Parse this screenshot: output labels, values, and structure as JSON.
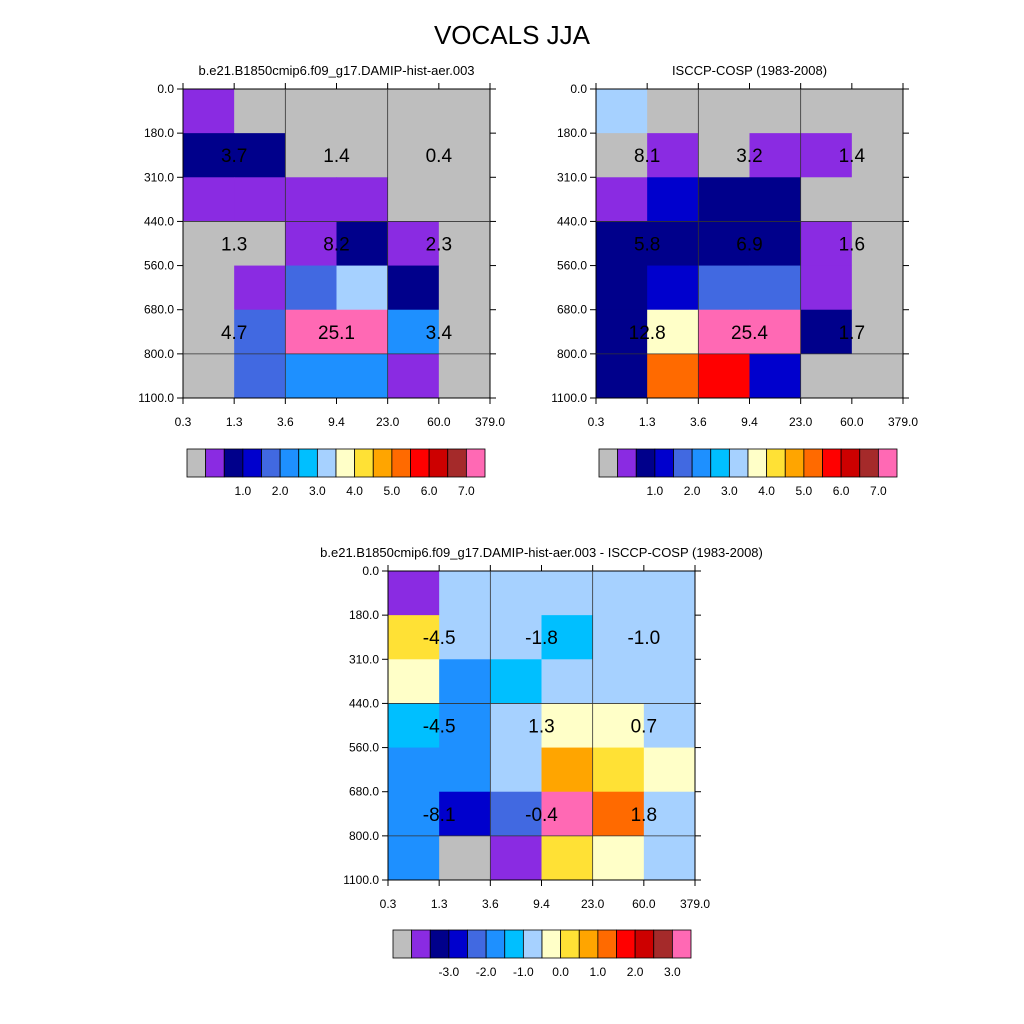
{
  "figure": {
    "title": "VOCALS JJA"
  },
  "colors": {
    "model_palette": [
      "#bebebe",
      "#8a2be2",
      "#00008b",
      "#0000cd",
      "#4169e1",
      "#1e90ff",
      "#00bfff",
      "#a6d1ff",
      "#ffffc8",
      "#ffe135",
      "#ffa500",
      "#ff6a00",
      "#ff0000",
      "#cd0000",
      "#a52a2a",
      "#ff69b4"
    ],
    "diff_palette": [
      "#bebebe",
      "#8a2be2",
      "#00008b",
      "#0000cd",
      "#4169e1",
      "#1e90ff",
      "#00bfff",
      "#a6d1ff",
      "#ffffc8",
      "#ffe135",
      "#ffa500",
      "#ff6a00",
      "#ff0000",
      "#cd0000",
      "#a52a2a",
      "#ff69b4"
    ]
  },
  "chart_data": [
    {
      "type": "heatmap",
      "title": "b.e21.B1850cmip6.f09_g17.DAMIP-hist-aer.003",
      "x_tick_labels": [
        "0.3",
        "1.3",
        "3.6",
        "9.4",
        "23.0",
        "60.0",
        "379.0"
      ],
      "y_tick_labels": [
        "0.0",
        "180.0",
        "310.0",
        "440.0",
        "560.0",
        "680.0",
        "800.0",
        "1100.0"
      ],
      "colorbar_labels": [
        "1.0",
        "2.0",
        "3.0",
        "4.0",
        "5.0",
        "6.0",
        "7.0"
      ],
      "cells": [
        [
          1,
          0,
          0,
          0,
          0,
          0
        ],
        [
          2,
          2,
          0,
          0,
          0,
          0
        ],
        [
          1,
          1,
          1,
          1,
          0,
          0
        ],
        [
          0,
          0,
          1,
          2,
          1,
          0
        ],
        [
          0,
          1,
          4,
          7,
          2,
          0
        ],
        [
          0,
          4,
          15,
          15,
          5,
          0
        ],
        [
          0,
          4,
          5,
          5,
          1,
          0
        ]
      ],
      "annotations": [
        {
          "row": 1,
          "col": 0,
          "text": "3.7"
        },
        {
          "row": 1,
          "col": 1,
          "text": "1.4"
        },
        {
          "row": 1,
          "col": 2,
          "text": "0.4"
        },
        {
          "row": 3,
          "col": 0,
          "text": "1.3"
        },
        {
          "row": 3,
          "col": 1,
          "text": "8.2"
        },
        {
          "row": 3,
          "col": 2,
          "text": "2.3"
        },
        {
          "row": 5,
          "col": 0,
          "text": "4.7"
        },
        {
          "row": 5,
          "col": 1,
          "text": "25.1"
        },
        {
          "row": 5,
          "col": 2,
          "text": "3.4"
        }
      ]
    },
    {
      "type": "heatmap",
      "title": "ISCCP-COSP (1983-2008)",
      "x_tick_labels": [
        "0.3",
        "1.3",
        "3.6",
        "9.4",
        "23.0",
        "60.0",
        "379.0"
      ],
      "y_tick_labels": [
        "0.0",
        "180.0",
        "310.0",
        "440.0",
        "560.0",
        "680.0",
        "800.0",
        "1100.0"
      ],
      "colorbar_labels": [
        "1.0",
        "2.0",
        "3.0",
        "4.0",
        "5.0",
        "6.0",
        "7.0"
      ],
      "cells": [
        [
          7,
          0,
          0,
          0,
          0,
          0
        ],
        [
          0,
          1,
          0,
          1,
          1,
          0
        ],
        [
          1,
          3,
          2,
          2,
          0,
          0
        ],
        [
          2,
          2,
          2,
          2,
          1,
          0
        ],
        [
          2,
          3,
          4,
          4,
          1,
          0
        ],
        [
          2,
          8,
          15,
          15,
          2,
          0
        ],
        [
          2,
          11,
          12,
          3,
          0,
          0
        ]
      ],
      "annotations": [
        {
          "row": 1,
          "col": 0,
          "text": "8.1"
        },
        {
          "row": 1,
          "col": 1,
          "text": "3.2"
        },
        {
          "row": 1,
          "col": 2,
          "text": "1.4"
        },
        {
          "row": 3,
          "col": 0,
          "text": "5.8"
        },
        {
          "row": 3,
          "col": 1,
          "text": "6.9"
        },
        {
          "row": 3,
          "col": 2,
          "text": "1.6"
        },
        {
          "row": 5,
          "col": 0,
          "text": "12.8"
        },
        {
          "row": 5,
          "col": 1,
          "text": "25.4"
        },
        {
          "row": 5,
          "col": 2,
          "text": "1.7"
        }
      ]
    },
    {
      "type": "heatmap",
      "title": "b.e21.B1850cmip6.f09_g17.DAMIP-hist-aer.003 - ISCCP-COSP (1983-2008)",
      "x_tick_labels": [
        "0.3",
        "1.3",
        "3.6",
        "9.4",
        "23.0",
        "60.0",
        "379.0"
      ],
      "y_tick_labels": [
        "0.0",
        "180.0",
        "310.0",
        "440.0",
        "560.0",
        "680.0",
        "800.0",
        "1100.0"
      ],
      "colorbar_labels": [
        "-3.0",
        "-2.0",
        "-1.0",
        "0.0",
        "1.0",
        "2.0",
        "3.0"
      ],
      "cells": [
        [
          1,
          7,
          7,
          7,
          7,
          7
        ],
        [
          9,
          7,
          7,
          6,
          7,
          7
        ],
        [
          8,
          5,
          6,
          7,
          7,
          7
        ],
        [
          6,
          5,
          7,
          8,
          8,
          7
        ],
        [
          5,
          5,
          7,
          10,
          9,
          8
        ],
        [
          5,
          3,
          4,
          15,
          11,
          7
        ],
        [
          5,
          0,
          1,
          9,
          8,
          7
        ]
      ],
      "annotations": [
        {
          "row": 1,
          "col": 0,
          "text": "-4.5"
        },
        {
          "row": 1,
          "col": 1,
          "text": "-1.8"
        },
        {
          "row": 1,
          "col": 2,
          "text": "-1.0"
        },
        {
          "row": 3,
          "col": 0,
          "text": "-4.5"
        },
        {
          "row": 3,
          "col": 1,
          "text": "1.3"
        },
        {
          "row": 3,
          "col": 2,
          "text": "0.7"
        },
        {
          "row": 5,
          "col": 0,
          "text": "-8.1"
        },
        {
          "row": 5,
          "col": 1,
          "text": "-0.4"
        },
        {
          "row": 5,
          "col": 2,
          "text": "1.8"
        }
      ]
    }
  ]
}
